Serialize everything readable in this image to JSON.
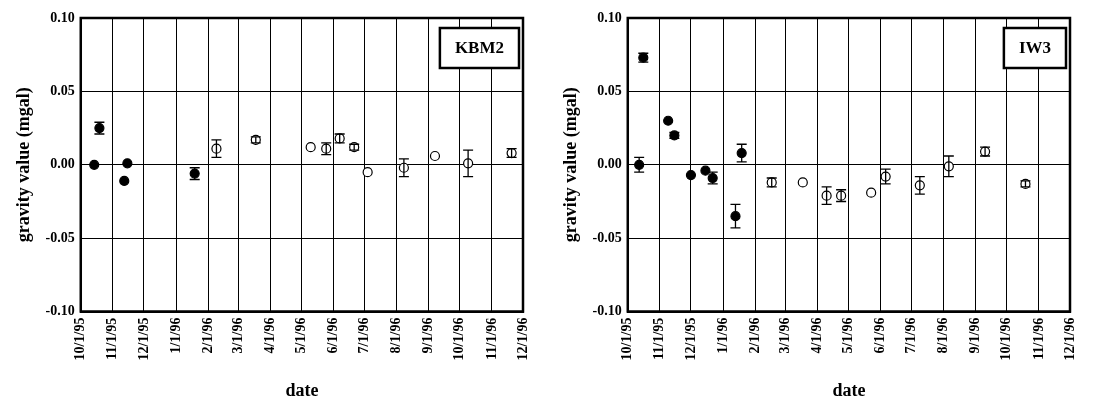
{
  "chart_data": [
    {
      "type": "scatter",
      "ylabel": "gravity value (mgal)",
      "xlabel": "date",
      "annotations": [
        "KBM2"
      ],
      "marker": "circle",
      "grid": true,
      "legend": false,
      "xlim": [
        "1995-10-01",
        "1996-12-01"
      ],
      "xticks": [
        {
          "value": "1995-10-01",
          "label": "10/1/95"
        },
        {
          "value": "1995-11-01",
          "label": "11/1/95"
        },
        {
          "value": "1995-12-01",
          "label": "12/1/95"
        },
        {
          "value": "1996-01-01",
          "label": "1/1/96"
        },
        {
          "value": "1996-02-01",
          "label": "2/1/96"
        },
        {
          "value": "1996-03-01",
          "label": "3/1/96"
        },
        {
          "value": "1996-04-01",
          "label": "4/1/96"
        },
        {
          "value": "1996-05-01",
          "label": "5/1/96"
        },
        {
          "value": "1996-06-01",
          "label": "6/1/96"
        },
        {
          "value": "1996-07-01",
          "label": "7/1/96"
        },
        {
          "value": "1996-08-01",
          "label": "8/1/96"
        },
        {
          "value": "1996-09-01",
          "label": "9/1/96"
        },
        {
          "value": "1996-10-01",
          "label": "10/1/96"
        },
        {
          "value": "1996-11-01",
          "label": "11/1/96"
        },
        {
          "value": "1996-12-01",
          "label": "12/1/96"
        }
      ],
      "ylim": [
        -0.1,
        0.1
      ],
      "yticks": [
        {
          "value": -0.1,
          "label": "-0.10"
        },
        {
          "value": -0.05,
          "label": "-0.05"
        },
        {
          "value": 0,
          "label": "0.00"
        },
        {
          "value": 0.05,
          "label": "0.05"
        },
        {
          "value": 0.1,
          "label": "0.10"
        }
      ],
      "series": [
        {
          "color": "#000000",
          "x": [
            "1995-10-14",
            "1995-10-19",
            "1995-11-12",
            "1995-11-15",
            "1996-01-19"
          ],
          "values": [
            0.0,
            0.025,
            -0.011,
            0.001,
            -0.006
          ],
          "errors": [
            null,
            0.004,
            null,
            null,
            0.004
          ]
        },
        {
          "color": "#ffffff",
          "x": [
            "1996-02-09",
            "1996-03-18",
            "1996-05-10",
            "1996-05-25",
            "1996-06-07",
            "1996-06-21",
            "1996-07-04",
            "1996-08-08",
            "1996-09-07",
            "1996-10-09",
            "1996-11-20"
          ],
          "values": [
            0.011,
            0.017,
            0.012,
            0.011,
            0.018,
            0.012,
            -0.005,
            -0.002,
            0.006,
            0.001,
            0.008
          ],
          "errors": [
            0.006,
            0.002,
            null,
            0.004,
            0.003,
            0.002,
            null,
            0.006,
            null,
            0.009,
            0.003
          ]
        }
      ]
    },
    {
      "type": "scatter",
      "ylabel": "gravity value (mgal)",
      "xlabel": "date",
      "annotations": [
        "IW3"
      ],
      "marker": "circle",
      "grid": true,
      "legend": false,
      "xlim": [
        "1995-10-01",
        "1996-12-01"
      ],
      "xticks": [
        {
          "value": "1995-10-01",
          "label": "10/1/95"
        },
        {
          "value": "1995-11-01",
          "label": "11/1/95"
        },
        {
          "value": "1995-12-01",
          "label": "12/1/95"
        },
        {
          "value": "1996-01-01",
          "label": "1/1/96"
        },
        {
          "value": "1996-02-01",
          "label": "2/1/96"
        },
        {
          "value": "1996-03-01",
          "label": "3/1/96"
        },
        {
          "value": "1996-04-01",
          "label": "4/1/96"
        },
        {
          "value": "1996-05-01",
          "label": "5/1/96"
        },
        {
          "value": "1996-06-01",
          "label": "6/1/96"
        },
        {
          "value": "1996-07-01",
          "label": "7/1/96"
        },
        {
          "value": "1996-08-01",
          "label": "8/1/96"
        },
        {
          "value": "1996-09-01",
          "label": "9/1/96"
        },
        {
          "value": "1996-10-01",
          "label": "10/1/96"
        },
        {
          "value": "1996-11-01",
          "label": "11/1/96"
        },
        {
          "value": "1996-12-01",
          "label": "12/1/96"
        }
      ],
      "ylim": [
        -0.1,
        0.1
      ],
      "yticks": [
        {
          "value": -0.1,
          "label": "-0.10"
        },
        {
          "value": -0.05,
          "label": "-0.05"
        },
        {
          "value": 0,
          "label": "0.00"
        },
        {
          "value": 0.05,
          "label": "0.05"
        },
        {
          "value": 0.1,
          "label": "0.10"
        }
      ],
      "series": [
        {
          "color": "#000000",
          "x": [
            "1995-10-12",
            "1995-10-16",
            "1995-11-09",
            "1995-11-15",
            "1995-12-01",
            "1995-12-15",
            "1995-12-22",
            "1996-01-13",
            "1996-01-19"
          ],
          "values": [
            0.0,
            0.073,
            0.03,
            0.02,
            -0.007,
            -0.004,
            -0.009,
            -0.035,
            0.008
          ],
          "errors": [
            0.005,
            0.003,
            null,
            0.002,
            null,
            null,
            0.004,
            0.008,
            0.006
          ]
        },
        {
          "color": "#ffffff",
          "x": [
            "1996-02-17",
            "1996-03-18",
            "1996-04-10",
            "1996-04-24",
            "1996-05-23",
            "1996-06-06",
            "1996-07-09",
            "1996-08-06",
            "1996-09-10",
            "1996-10-19"
          ],
          "values": [
            -0.012,
            -0.012,
            -0.021,
            -0.021,
            -0.019,
            -0.008,
            -0.014,
            -0.001,
            0.009,
            -0.013
          ],
          "errors": [
            0.003,
            null,
            0.006,
            0.004,
            null,
            0.005,
            0.006,
            0.007,
            0.003,
            0.002
          ]
        }
      ]
    }
  ]
}
